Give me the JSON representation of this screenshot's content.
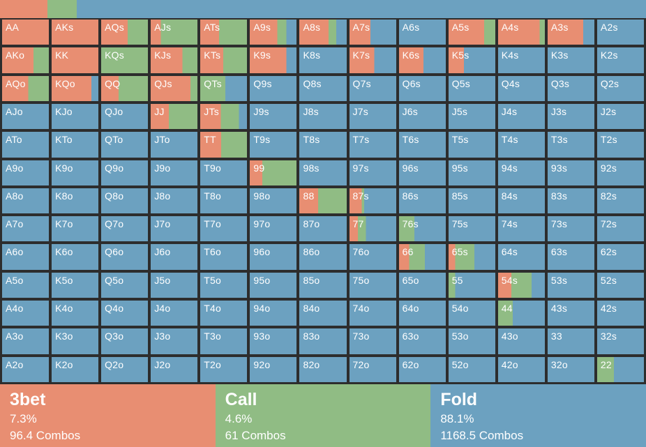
{
  "actions": [
    {
      "id": "threebet",
      "label": "3bet",
      "pct": "7.3%",
      "combos": "96.4 Combos",
      "pct_value": 7.3,
      "color": "#e88e72"
    },
    {
      "id": "call",
      "label": "Call",
      "pct": "4.6%",
      "combos": "61 Combos",
      "pct_value": 4.6,
      "color": "#90bc84"
    },
    {
      "id": "fold",
      "label": "Fold",
      "pct": "88.1%",
      "combos": "1168.5 Combos",
      "pct_value": 88.1,
      "color": "#6ca1c0"
    }
  ],
  "colors": {
    "grid_line": "#2d2d2d",
    "label_text": "#ffffff"
  },
  "grid": {
    "note": "each cell = [hand label, 3bet %, call %]; fold % = remainder",
    "rows": [
      [
        [
          "AA",
          100,
          0
        ],
        [
          "AKs",
          100,
          0
        ],
        [
          "AQs",
          57,
          43
        ],
        [
          "AJs",
          22,
          78
        ],
        [
          "ATs",
          40,
          60
        ],
        [
          "A9s",
          59,
          19
        ],
        [
          "A8s",
          62,
          16
        ],
        [
          "A7s",
          45,
          0
        ],
        [
          "A6s",
          0,
          0
        ],
        [
          "A5s",
          76,
          24
        ],
        [
          "A4s",
          89,
          11
        ],
        [
          "A3s",
          76,
          0
        ],
        [
          "A2s",
          0,
          0
        ]
      ],
      [
        [
          "AKo",
          67,
          33
        ],
        [
          "KK",
          100,
          0
        ],
        [
          "KQs",
          0,
          100
        ],
        [
          "KJs",
          68,
          32
        ],
        [
          "KTs",
          49,
          51
        ],
        [
          "K9s",
          78,
          0
        ],
        [
          "K8s",
          0,
          0
        ],
        [
          "K7s",
          53,
          0
        ],
        [
          "K6s",
          52,
          0
        ],
        [
          "K5s",
          33,
          0
        ],
        [
          "K4s",
          0,
          0
        ],
        [
          "K3s",
          0,
          0
        ],
        [
          "K2s",
          0,
          0
        ]
      ],
      [
        [
          "AQo",
          56,
          44
        ],
        [
          "KQo",
          85,
          0
        ],
        [
          "QQ",
          37,
          63
        ],
        [
          "QJs",
          85,
          15
        ],
        [
          "QTs",
          0,
          54
        ],
        [
          "Q9s",
          0,
          0
        ],
        [
          "Q8s",
          0,
          0
        ],
        [
          "Q7s",
          0,
          0
        ],
        [
          "Q6s",
          0,
          0
        ],
        [
          "Q5s",
          0,
          0
        ],
        [
          "Q4s",
          0,
          0
        ],
        [
          "Q3s",
          0,
          0
        ],
        [
          "Q2s",
          0,
          0
        ]
      ],
      [
        [
          "AJo",
          0,
          0
        ],
        [
          "KJo",
          0,
          0
        ],
        [
          "QJo",
          0,
          0
        ],
        [
          "JJ",
          39,
          61
        ],
        [
          "JTs",
          44,
          39
        ],
        [
          "J9s",
          0,
          0
        ],
        [
          "J8s",
          0,
          0
        ],
        [
          "J7s",
          0,
          0
        ],
        [
          "J6s",
          0,
          0
        ],
        [
          "J5s",
          0,
          0
        ],
        [
          "J4s",
          0,
          0
        ],
        [
          "J3s",
          0,
          0
        ],
        [
          "J2s",
          0,
          0
        ]
      ],
      [
        [
          "ATo",
          0,
          0
        ],
        [
          "KTo",
          0,
          0
        ],
        [
          "QTo",
          0,
          0
        ],
        [
          "JTo",
          0,
          0
        ],
        [
          "TT",
          45,
          55
        ],
        [
          "T9s",
          0,
          0
        ],
        [
          "T8s",
          0,
          0
        ],
        [
          "T7s",
          0,
          0
        ],
        [
          "T6s",
          0,
          0
        ],
        [
          "T5s",
          0,
          0
        ],
        [
          "T4s",
          0,
          0
        ],
        [
          "T3s",
          0,
          0
        ],
        [
          "T2s",
          0,
          0
        ]
      ],
      [
        [
          "A9o",
          0,
          0
        ],
        [
          "K9o",
          0,
          0
        ],
        [
          "Q9o",
          0,
          0
        ],
        [
          "J9o",
          0,
          0
        ],
        [
          "T9o",
          0,
          0
        ],
        [
          "99",
          27,
          73
        ],
        [
          "98s",
          0,
          0
        ],
        [
          "97s",
          0,
          0
        ],
        [
          "96s",
          0,
          0
        ],
        [
          "95s",
          0,
          0
        ],
        [
          "94s",
          0,
          0
        ],
        [
          "93s",
          0,
          0
        ],
        [
          "92s",
          0,
          0
        ]
      ],
      [
        [
          "A8o",
          0,
          0
        ],
        [
          "K8o",
          0,
          0
        ],
        [
          "Q8o",
          0,
          0
        ],
        [
          "J8o",
          0,
          0
        ],
        [
          "T8o",
          0,
          0
        ],
        [
          "98o",
          0,
          0
        ],
        [
          "88",
          40,
          60
        ],
        [
          "87s",
          26,
          5
        ],
        [
          "86s",
          0,
          0
        ],
        [
          "85s",
          0,
          0
        ],
        [
          "84s",
          0,
          0
        ],
        [
          "83s",
          0,
          0
        ],
        [
          "82s",
          0,
          0
        ]
      ],
      [
        [
          "A7o",
          0,
          0
        ],
        [
          "K7o",
          0,
          0
        ],
        [
          "Q7o",
          0,
          0
        ],
        [
          "J7o",
          0,
          0
        ],
        [
          "T7o",
          0,
          0
        ],
        [
          "97o",
          0,
          0
        ],
        [
          "87o",
          0,
          0
        ],
        [
          "77",
          18,
          17
        ],
        [
          "76s",
          0,
          33
        ],
        [
          "75s",
          0,
          0
        ],
        [
          "74s",
          0,
          0
        ],
        [
          "73s",
          0,
          0
        ],
        [
          "72s",
          0,
          0
        ]
      ],
      [
        [
          "A6o",
          0,
          0
        ],
        [
          "K6o",
          0,
          0
        ],
        [
          "Q6o",
          0,
          0
        ],
        [
          "J6o",
          0,
          0
        ],
        [
          "T6o",
          0,
          0
        ],
        [
          "96o",
          0,
          0
        ],
        [
          "86o",
          0,
          0
        ],
        [
          "76o",
          0,
          0
        ],
        [
          "66",
          22,
          33
        ],
        [
          "65s",
          14,
          41
        ],
        [
          "64s",
          0,
          0
        ],
        [
          "63s",
          0,
          0
        ],
        [
          "62s",
          0,
          0
        ]
      ],
      [
        [
          "A5o",
          0,
          0
        ],
        [
          "K5o",
          0,
          0
        ],
        [
          "Q5o",
          0,
          0
        ],
        [
          "J5o",
          0,
          0
        ],
        [
          "T5o",
          0,
          0
        ],
        [
          "95o",
          0,
          0
        ],
        [
          "85o",
          0,
          0
        ],
        [
          "75o",
          0,
          0
        ],
        [
          "65o",
          0,
          0
        ],
        [
          "55",
          0,
          14
        ],
        [
          "54s",
          28,
          44
        ],
        [
          "53s",
          0,
          0
        ],
        [
          "52s",
          0,
          0
        ]
      ],
      [
        [
          "A4o",
          0,
          0
        ],
        [
          "K4o",
          0,
          0
        ],
        [
          "Q4o",
          0,
          0
        ],
        [
          "J4o",
          0,
          0
        ],
        [
          "T4o",
          0,
          0
        ],
        [
          "94o",
          0,
          0
        ],
        [
          "84o",
          0,
          0
        ],
        [
          "74o",
          0,
          0
        ],
        [
          "64o",
          0,
          0
        ],
        [
          "54o",
          0,
          0
        ],
        [
          "44",
          0,
          31
        ],
        [
          "43s",
          0,
          0
        ],
        [
          "42s",
          0,
          0
        ]
      ],
      [
        [
          "A3o",
          0,
          0
        ],
        [
          "K3o",
          0,
          0
        ],
        [
          "Q3o",
          0,
          0
        ],
        [
          "J3o",
          0,
          0
        ],
        [
          "T3o",
          0,
          0
        ],
        [
          "93o",
          0,
          0
        ],
        [
          "83o",
          0,
          0
        ],
        [
          "73o",
          0,
          0
        ],
        [
          "63o",
          0,
          0
        ],
        [
          "53o",
          0,
          0
        ],
        [
          "43o",
          0,
          0
        ],
        [
          "33",
          0,
          0
        ],
        [
          "32s",
          0,
          0
        ]
      ],
      [
        [
          "A2o",
          0,
          0
        ],
        [
          "K2o",
          0,
          0
        ],
        [
          "Q2o",
          0,
          0
        ],
        [
          "J2o",
          0,
          0
        ],
        [
          "T2o",
          0,
          0
        ],
        [
          "92o",
          0,
          0
        ],
        [
          "82o",
          0,
          0
        ],
        [
          "72o",
          0,
          0
        ],
        [
          "62o",
          0,
          0
        ],
        [
          "52o",
          0,
          0
        ],
        [
          "42o",
          0,
          0
        ],
        [
          "32o",
          0,
          0
        ],
        [
          "22",
          0,
          36
        ]
      ]
    ]
  }
}
